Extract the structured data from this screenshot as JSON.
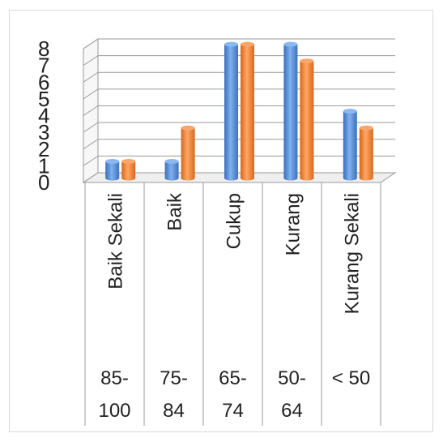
{
  "chart_data": {
    "type": "bar",
    "title": "",
    "xlabel": "",
    "ylabel": "",
    "ylim": [
      0,
      8
    ],
    "yticks": [
      "0",
      "1",
      "2",
      "3",
      "4",
      "5",
      "6",
      "7",
      "8"
    ],
    "grid": true,
    "legend": "none",
    "categories": [
      "Baik Sekali",
      "Baik",
      "Cukup",
      "Kurang",
      "Kurang Sekali"
    ],
    "category_ranges": [
      [
        "85-",
        "100"
      ],
      [
        "75-",
        "84"
      ],
      [
        "65-",
        "74"
      ],
      [
        "50-",
        "64"
      ],
      [
        "< 50",
        ""
      ]
    ],
    "series": [
      {
        "values": [
          1,
          1,
          8,
          8,
          4
        ],
        "color": "#4f86cf"
      },
      {
        "values": [
          1,
          3,
          8,
          7,
          3
        ],
        "color": "#ed7d31"
      }
    ]
  }
}
